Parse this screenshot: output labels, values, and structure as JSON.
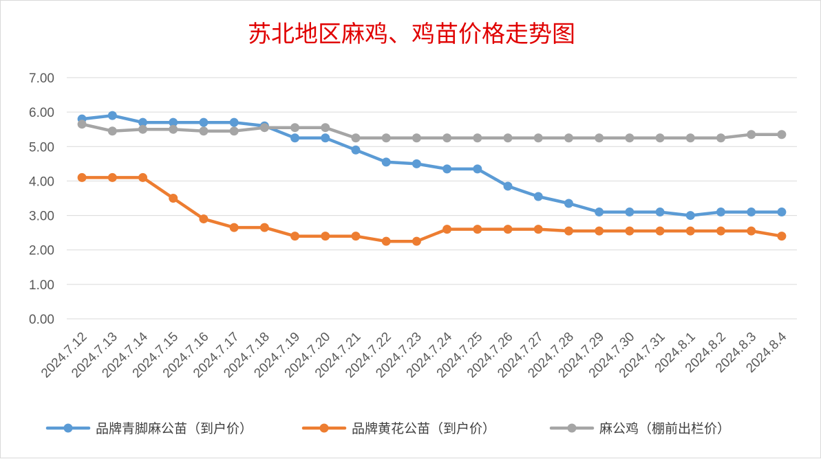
{
  "chart_data": {
    "type": "line",
    "title": "苏北地区麻鸡、鸡苗价格走势图",
    "xlabel": "",
    "ylabel": "",
    "ylim": [
      0,
      7
    ],
    "yticks": [
      "0.00",
      "1.00",
      "2.00",
      "3.00",
      "4.00",
      "5.00",
      "6.00",
      "7.00"
    ],
    "grid": true,
    "legend_position": "bottom",
    "categories": [
      "2024.7.12",
      "2024.7.13",
      "2024.7.14",
      "2024.7.15",
      "2024.7.16",
      "2024.7.17",
      "2024.7.18",
      "2024.7.19",
      "2024.7.20",
      "2024.7.21",
      "2024.7.22",
      "2024.7.23",
      "2024.7.24",
      "2024.7.25",
      "2024.7.26",
      "2024.7.27",
      "2024.7.28",
      "2024.7.29",
      "2024.7.30",
      "2024.7.31",
      "2024.8.1",
      "2024.8.2",
      "2024.8.3",
      "2024.8.4"
    ],
    "series": [
      {
        "name": "品牌青脚麻公苗（到户价）",
        "color": "#5b9bd5",
        "values": [
          5.8,
          5.9,
          5.7,
          5.7,
          5.7,
          5.7,
          5.6,
          5.25,
          5.25,
          4.9,
          4.55,
          4.5,
          4.35,
          4.35,
          3.85,
          3.55,
          3.35,
          3.1,
          3.1,
          3.1,
          3.0,
          3.1,
          3.1,
          3.1
        ]
      },
      {
        "name": "品牌黄花公苗（到户价）",
        "color": "#ed7d31",
        "values": [
          4.1,
          4.1,
          4.1,
          3.5,
          2.9,
          2.65,
          2.65,
          2.4,
          2.4,
          2.4,
          2.25,
          2.25,
          2.6,
          2.6,
          2.6,
          2.6,
          2.55,
          2.55,
          2.55,
          2.55,
          2.55,
          2.55,
          2.55,
          2.4
        ]
      },
      {
        "name": "麻公鸡（棚前出栏价）",
        "color": "#a5a5a5",
        "values": [
          5.65,
          5.45,
          5.5,
          5.5,
          5.45,
          5.45,
          5.55,
          5.55,
          5.55,
          5.25,
          5.25,
          5.25,
          5.25,
          5.25,
          5.25,
          5.25,
          5.25,
          5.25,
          5.25,
          5.25,
          5.25,
          5.25,
          5.35,
          5.35
        ]
      }
    ]
  }
}
